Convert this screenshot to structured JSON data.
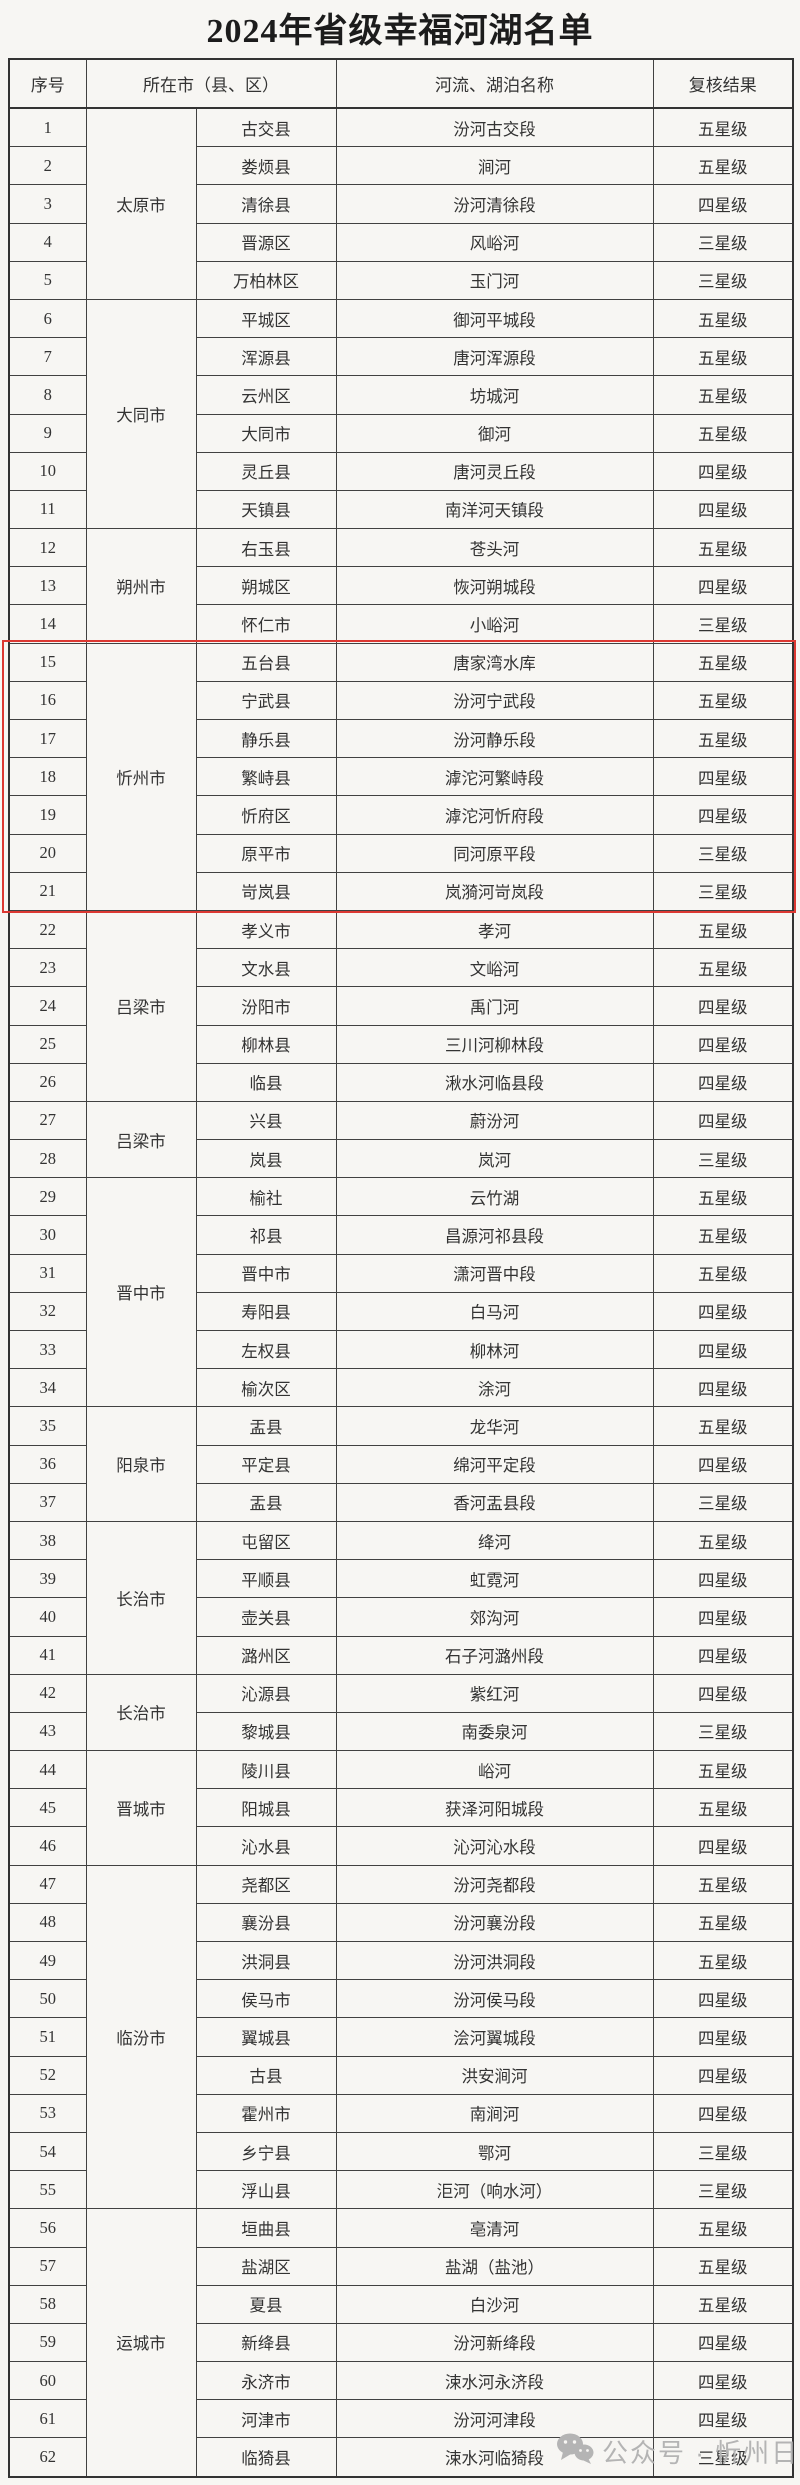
{
  "title": "2024年省级幸福河湖名单",
  "table": {
    "headers": {
      "no": "序号",
      "location": "所在市（县、区）",
      "name": "河流、湖泊名称",
      "result": "复核结果"
    },
    "groups": [
      {
        "city": "太原市",
        "rows": [
          {
            "no": 1,
            "county": "古交县",
            "name": "汾河古交段",
            "result": "五星级"
          },
          {
            "no": 2,
            "county": "娄烦县",
            "name": "涧河",
            "result": "五星级"
          },
          {
            "no": 3,
            "county": "清徐县",
            "name": "汾河清徐段",
            "result": "四星级"
          },
          {
            "no": 4,
            "county": "晋源区",
            "name": "风峪河",
            "result": "三星级"
          },
          {
            "no": 5,
            "county": "万柏林区",
            "name": "玉门河",
            "result": "三星级"
          }
        ]
      },
      {
        "city": "大同市",
        "rows": [
          {
            "no": 6,
            "county": "平城区",
            "name": "御河平城段",
            "result": "五星级"
          },
          {
            "no": 7,
            "county": "浑源县",
            "name": "唐河浑源段",
            "result": "五星级"
          },
          {
            "no": 8,
            "county": "云州区",
            "name": "坊城河",
            "result": "五星级"
          },
          {
            "no": 9,
            "county": "大同市",
            "name": "御河",
            "result": "五星级"
          },
          {
            "no": 10,
            "county": "灵丘县",
            "name": "唐河灵丘段",
            "result": "四星级"
          },
          {
            "no": 11,
            "county": "天镇县",
            "name": "南洋河天镇段",
            "result": "四星级"
          }
        ]
      },
      {
        "city": "朔州市",
        "rows": [
          {
            "no": 12,
            "county": "右玉县",
            "name": "苍头河",
            "result": "五星级"
          },
          {
            "no": 13,
            "county": "朔城区",
            "name": "恢河朔城段",
            "result": "四星级"
          },
          {
            "no": 14,
            "county": "怀仁市",
            "name": "小峪河",
            "result": "三星级"
          }
        ]
      },
      {
        "city": "忻州市",
        "rows": [
          {
            "no": 15,
            "county": "五台县",
            "name": "唐家湾水库",
            "result": "五星级"
          },
          {
            "no": 16,
            "county": "宁武县",
            "name": "汾河宁武段",
            "result": "五星级"
          },
          {
            "no": 17,
            "county": "静乐县",
            "name": "汾河静乐段",
            "result": "五星级"
          },
          {
            "no": 18,
            "county": "繁峙县",
            "name": "滹沱河繁峙段",
            "result": "四星级"
          },
          {
            "no": 19,
            "county": "忻府区",
            "name": "滹沱河忻府段",
            "result": "四星级"
          },
          {
            "no": 20,
            "county": "原平市",
            "name": "同河原平段",
            "result": "三星级"
          },
          {
            "no": 21,
            "county": "岢岚县",
            "name": "岚漪河岢岚段",
            "result": "三星级"
          }
        ]
      },
      {
        "city": "吕梁市",
        "rows": [
          {
            "no": 22,
            "county": "孝义市",
            "name": "孝河",
            "result": "五星级"
          },
          {
            "no": 23,
            "county": "文水县",
            "name": "文峪河",
            "result": "五星级"
          },
          {
            "no": 24,
            "county": "汾阳市",
            "name": "禹门河",
            "result": "四星级"
          },
          {
            "no": 25,
            "county": "柳林县",
            "name": "三川河柳林段",
            "result": "四星级"
          },
          {
            "no": 26,
            "county": "临县",
            "name": "湫水河临县段",
            "result": "四星级"
          }
        ]
      },
      {
        "city": "吕梁市",
        "rows": [
          {
            "no": 27,
            "county": "兴县",
            "name": "蔚汾河",
            "result": "四星级"
          },
          {
            "no": 28,
            "county": "岚县",
            "name": "岚河",
            "result": "三星级"
          }
        ]
      },
      {
        "city": "晋中市",
        "rows": [
          {
            "no": 29,
            "county": "榆社",
            "name": "云竹湖",
            "result": "五星级"
          },
          {
            "no": 30,
            "county": "祁县",
            "name": "昌源河祁县段",
            "result": "五星级"
          },
          {
            "no": 31,
            "county": "晋中市",
            "name": "潇河晋中段",
            "result": "五星级"
          },
          {
            "no": 32,
            "county": "寿阳县",
            "name": "白马河",
            "result": "四星级"
          },
          {
            "no": 33,
            "county": "左权县",
            "name": "柳林河",
            "result": "四星级"
          },
          {
            "no": 34,
            "county": "榆次区",
            "name": "涂河",
            "result": "四星级"
          }
        ]
      },
      {
        "city": "阳泉市",
        "rows": [
          {
            "no": 35,
            "county": "盂县",
            "name": "龙华河",
            "result": "五星级"
          },
          {
            "no": 36,
            "county": "平定县",
            "name": "绵河平定段",
            "result": "四星级"
          },
          {
            "no": 37,
            "county": "盂县",
            "name": "香河盂县段",
            "result": "三星级"
          }
        ]
      },
      {
        "city": "长治市",
        "rows": [
          {
            "no": 38,
            "county": "屯留区",
            "name": "绛河",
            "result": "五星级"
          },
          {
            "no": 39,
            "county": "平顺县",
            "name": "虹霓河",
            "result": "四星级"
          },
          {
            "no": 40,
            "county": "壶关县",
            "name": "郊沟河",
            "result": "四星级"
          },
          {
            "no": 41,
            "county": "潞州区",
            "name": "石子河潞州段",
            "result": "四星级"
          }
        ]
      },
      {
        "city": "长治市",
        "rows": [
          {
            "no": 42,
            "county": "沁源县",
            "name": "紫红河",
            "result": "四星级"
          },
          {
            "no": 43,
            "county": "黎城县",
            "name": "南委泉河",
            "result": "三星级"
          }
        ]
      },
      {
        "city": "晋城市",
        "rows": [
          {
            "no": 44,
            "county": "陵川县",
            "name": "峪河",
            "result": "五星级"
          },
          {
            "no": 45,
            "county": "阳城县",
            "name": "获泽河阳城段",
            "result": "五星级"
          },
          {
            "no": 46,
            "county": "沁水县",
            "name": "沁河沁水段",
            "result": "四星级"
          }
        ]
      },
      {
        "city": "临汾市",
        "rows": [
          {
            "no": 47,
            "county": "尧都区",
            "name": "汾河尧都段",
            "result": "五星级"
          },
          {
            "no": 48,
            "county": "襄汾县",
            "name": "汾河襄汾段",
            "result": "五星级"
          },
          {
            "no": 49,
            "county": "洪洞县",
            "name": "汾河洪洞段",
            "result": "五星级"
          },
          {
            "no": 50,
            "county": "侯马市",
            "name": "汾河侯马段",
            "result": "四星级"
          },
          {
            "no": 51,
            "county": "翼城县",
            "name": "浍河翼城段",
            "result": "四星级"
          },
          {
            "no": 52,
            "county": "古县",
            "name": "洪安涧河",
            "result": "四星级"
          },
          {
            "no": 53,
            "county": "霍州市",
            "name": "南涧河",
            "result": "四星级"
          },
          {
            "no": 54,
            "county": "乡宁县",
            "name": "鄂河",
            "result": "三星级"
          },
          {
            "no": 55,
            "county": "浮山县",
            "name": "洰河（响水河）",
            "result": "三星级"
          }
        ]
      },
      {
        "city": "运城市",
        "rows": [
          {
            "no": 56,
            "county": "垣曲县",
            "name": "亳清河",
            "result": "五星级"
          },
          {
            "no": 57,
            "county": "盐湖区",
            "name": "盐湖（盐池）",
            "result": "五星级"
          },
          {
            "no": 58,
            "county": "夏县",
            "name": "白沙河",
            "result": "五星级"
          },
          {
            "no": 59,
            "county": "新绛县",
            "name": "汾河新绛段",
            "result": "四星级"
          },
          {
            "no": 60,
            "county": "永济市",
            "name": "涑水河永济段",
            "result": "四星级"
          },
          {
            "no": 61,
            "county": "河津市",
            "name": "汾河河津段",
            "result": "四星级"
          },
          {
            "no": 62,
            "county": "临猗县",
            "name": "涑水河临猗段",
            "result": "三星级"
          }
        ]
      }
    ]
  },
  "highlight": {
    "from_no": 15,
    "to_no": 21,
    "color": "#dc3832"
  },
  "watermark": {
    "icon": "wechat-icon",
    "text": "公众号 · 忻州日报"
  }
}
